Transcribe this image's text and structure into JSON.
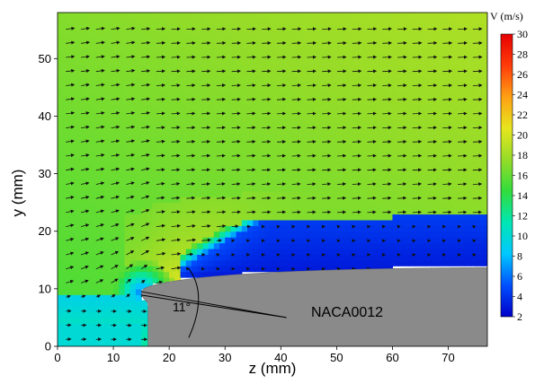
{
  "chart_data": {
    "type": "heatmap",
    "subtype": "velocity-vector-field",
    "xlabel": "z (mm)",
    "ylabel": "y (mm)",
    "xlim": [
      0,
      77
    ],
    "ylim": [
      0,
      58
    ],
    "xticks": [
      0,
      10,
      20,
      30,
      40,
      50,
      60,
      70
    ],
    "yticks": [
      0,
      10,
      20,
      30,
      40,
      50
    ],
    "colorbar": {
      "title": "V (m/s)",
      "min": 2,
      "max": 30,
      "ticks": [
        2,
        4,
        6,
        8,
        10,
        12,
        14,
        16,
        18,
        20,
        22,
        24,
        26,
        28,
        30
      ],
      "colormap": [
        "#0000c8",
        "#0050ff",
        "#00c8ff",
        "#00e6b4",
        "#32dc3c",
        "#96dc28",
        "#e6e61e",
        "#ffa014",
        "#ff3c0a",
        "#e60000"
      ]
    },
    "airfoil": {
      "name": "NACA0012",
      "angle_label": "11°",
      "leading_edge": [
        15,
        9.5
      ],
      "upper_surface_at_exit": [
        77,
        11.5
      ],
      "lower_surface_at_exit": [
        77,
        0
      ]
    },
    "field_description": {
      "freestream_speed_range": [
        14,
        20
      ],
      "separated_region_speed_range": [
        2,
        6
      ],
      "separation_start_z": 22
    },
    "grid": false,
    "legend": "colorbar-right"
  }
}
